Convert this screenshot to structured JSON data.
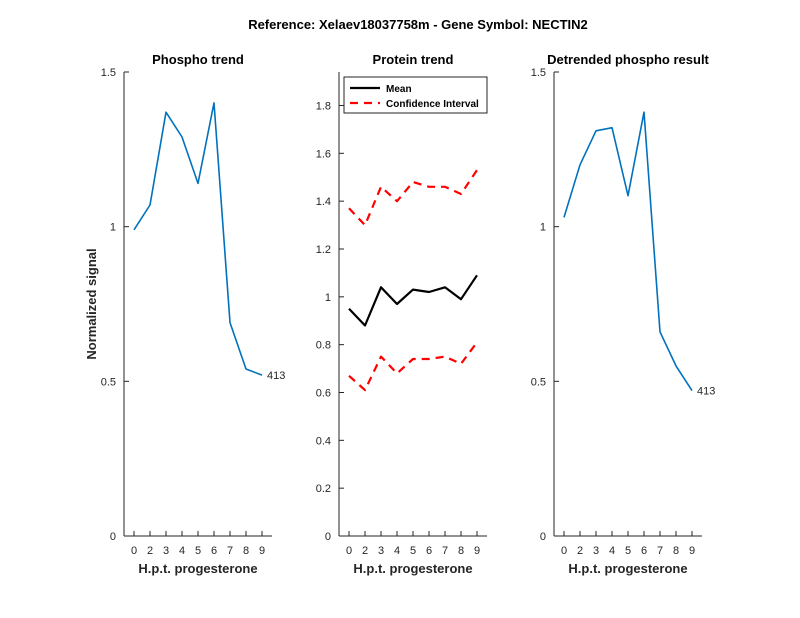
{
  "figure": {
    "title": "Reference:  Xelaev18037758m - Gene Symbol:  NECTIN2"
  },
  "chart_data": [
    {
      "type": "line",
      "title": "Phospho trend",
      "xlabel": "H.p.t. progesterone",
      "ylabel": "Normalized signal",
      "x": [
        0,
        2,
        3,
        4,
        5,
        6,
        7,
        8,
        9
      ],
      "x_tick_labels": [
        "0",
        "2",
        "3",
        "4",
        "5",
        "6",
        "7",
        "8",
        "9"
      ],
      "ylim": [
        0,
        1.5
      ],
      "y_ticks": [
        0,
        0.5,
        1,
        1.5
      ],
      "y_tick_labels": [
        "0",
        "0.5",
        "1",
        "1.5"
      ],
      "series": [
        {
          "values": [
            0.99,
            1.07,
            1.37,
            1.29,
            1.14,
            1.4,
            0.69,
            0.54,
            0.52
          ],
          "color": "#0072BD",
          "dash": "solid"
        }
      ],
      "end_label": "413"
    },
    {
      "type": "line",
      "title": "Protein trend",
      "xlabel": "H.p.t. progesterone",
      "ylabel": "",
      "x": [
        0,
        2,
        3,
        4,
        5,
        6,
        7,
        8,
        9
      ],
      "x_tick_labels": [
        "0",
        "2",
        "3",
        "4",
        "5",
        "6",
        "7",
        "8",
        "9"
      ],
      "ylim": [
        0,
        1.94
      ],
      "y_ticks": [
        0,
        0.2,
        0.4,
        0.6,
        0.8,
        1,
        1.2,
        1.4,
        1.6,
        1.8
      ],
      "y_tick_labels": [
        "0",
        "0.2",
        "0.4",
        "0.6",
        "0.8",
        "1",
        "1.2",
        "1.4",
        "1.6",
        "1.8"
      ],
      "series": [
        {
          "name": "Mean",
          "values": [
            0.95,
            0.88,
            1.04,
            0.97,
            1.03,
            1.02,
            1.04,
            0.99,
            1.09
          ],
          "color": "#000000",
          "dash": "solid"
        },
        {
          "name": "Confidence Interval",
          "values": [
            1.37,
            1.3,
            1.46,
            1.4,
            1.48,
            1.46,
            1.46,
            1.43,
            1.53
          ],
          "color": "#FF0000",
          "dash": "dashed"
        },
        {
          "values": [
            0.67,
            0.61,
            0.75,
            0.68,
            0.74,
            0.74,
            0.75,
            0.72,
            0.81
          ],
          "color": "#FF0000",
          "dash": "dashed"
        }
      ],
      "legend": {
        "placement": "top-left",
        "entries": [
          "Mean",
          "Confidence Interval"
        ]
      }
    },
    {
      "type": "line",
      "title": "Detrended phospho result",
      "xlabel": "H.p.t. progesterone",
      "ylabel": "",
      "x": [
        0,
        2,
        3,
        4,
        5,
        6,
        7,
        8,
        9
      ],
      "x_tick_labels": [
        "0",
        "2",
        "3",
        "4",
        "5",
        "6",
        "7",
        "8",
        "9"
      ],
      "ylim": [
        0,
        1.5
      ],
      "y_ticks": [
        0,
        0.5,
        1,
        1.5
      ],
      "y_tick_labels": [
        "0",
        "0.5",
        "1",
        "1.5"
      ],
      "series": [
        {
          "values": [
            1.03,
            1.2,
            1.31,
            1.32,
            1.1,
            1.37,
            0.66,
            0.55,
            0.47
          ],
          "color": "#0072BD",
          "dash": "solid"
        }
      ],
      "end_label": "413"
    }
  ]
}
